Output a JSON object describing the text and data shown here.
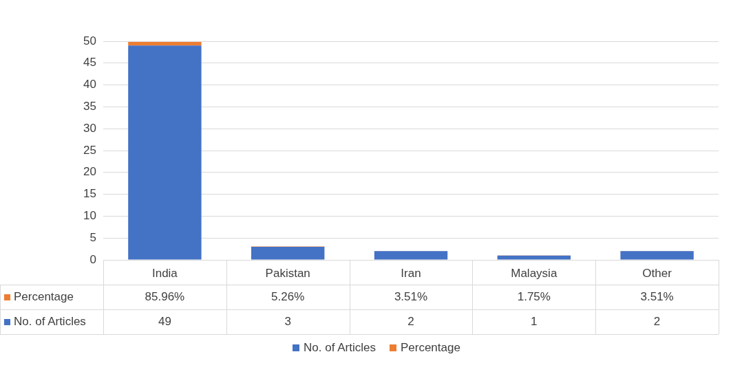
{
  "chart_data": {
    "type": "bar",
    "stacked": true,
    "categories": [
      "India",
      "Pakistan",
      "Iran",
      "Malaysia",
      "Other"
    ],
    "series": [
      {
        "name": "No. of Articles",
        "color": "#4472c4",
        "values": [
          49,
          3,
          2,
          1,
          2
        ],
        "value_labels": [
          "49",
          "3",
          "2",
          "1",
          "2"
        ]
      },
      {
        "name": "Percentage",
        "color": "#ed7d31",
        "values": [
          0.8596,
          0.0526,
          0.0351,
          0.0175,
          0.0351
        ],
        "value_labels": [
          "85.96%",
          "5.26%",
          "3.51%",
          "1.75%",
          "3.51%"
        ]
      }
    ],
    "ylim": [
      0,
      50
    ],
    "yticks": [
      0,
      5,
      10,
      15,
      20,
      25,
      30,
      35,
      40,
      45,
      50
    ],
    "grid": "y",
    "legend": "bottom"
  }
}
